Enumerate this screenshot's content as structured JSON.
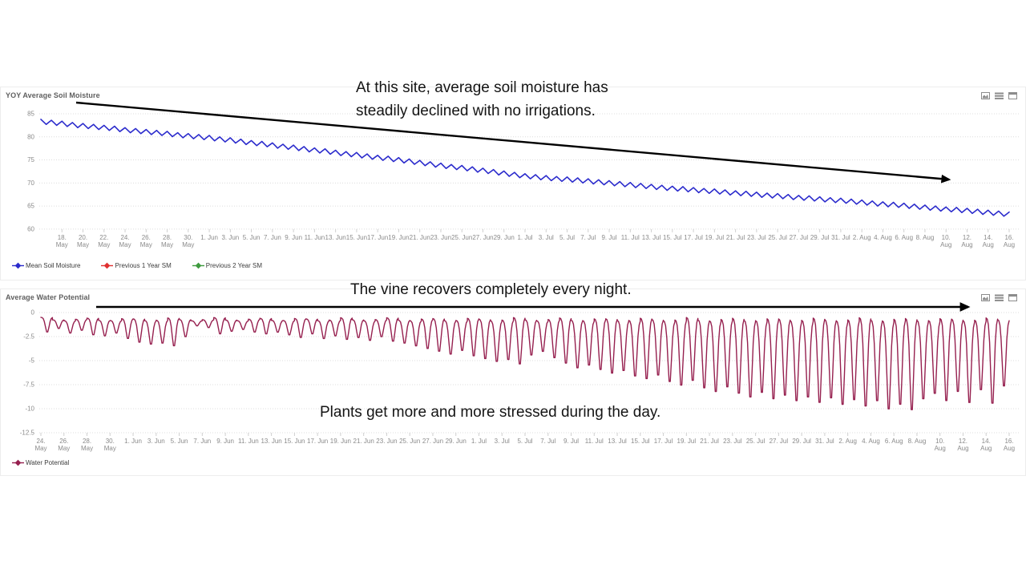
{
  "annotations": {
    "soil": {
      "line1": "At this site, average soil moisture has",
      "line2": "steadily declined with no irrigations."
    },
    "recovery": "The vine recovers completely every night.",
    "stress": "Plants get more and more stressed during the day."
  },
  "panel_icons": [
    "bar-chart",
    "table-view",
    "window"
  ],
  "ui_colors": {
    "grid": "#dcdcdc",
    "axis_text": "#8a8a8a",
    "icon_gray": "#8c8c8c",
    "arrow": "#000000"
  },
  "chart_data": [
    {
      "type": "line",
      "title": "YOY Average Soil Moisture",
      "xlabel": "",
      "ylabel": "",
      "yticks": [
        85,
        80,
        75,
        70,
        65,
        60
      ],
      "ylim": [
        59,
        86.5
      ],
      "grid": true,
      "legend_position": "bottom",
      "x_start_date": "16. May",
      "x_end_date": "16. Aug",
      "x_days": 92,
      "x_tick_start_day": 2,
      "x_tick_step_days": 2,
      "x_tick_labels": [
        "18.\nMay",
        "20.\nMay",
        "22.\nMay",
        "24.\nMay",
        "26.\nMay",
        "28.\nMay",
        "30.\nMay",
        "1. Jun",
        "3. Jun",
        "5. Jun",
        "7. Jun",
        "9. Jun",
        "11. Jun",
        "13. Jun",
        "15. Jun",
        "17. Jun",
        "19. Jun",
        "21. Jun",
        "23. Jun",
        "25. Jun",
        "27. Jun",
        "29. Jun",
        "1. Jul",
        "3. Jul",
        "5. Jul",
        "7. Jul",
        "9. Jul",
        "11. Jul",
        "13. Jul",
        "15. Jul",
        "17. Jul",
        "19. Jul",
        "21. Jul",
        "23. Jul",
        "25. Jul",
        "27. Jul",
        "29. Jul",
        "31. Jul",
        "2. Aug",
        "4. Aug",
        "6. Aug",
        "8. Aug",
        "10.\nAug",
        "12.\nAug",
        "14.\nAug",
        "16.\nAug"
      ],
      "series": [
        {
          "name": "Mean Soil Moisture",
          "color": "#2b2bcc",
          "daily_oscillation": 0.5,
          "daily_values": [
            83.3,
            83.1,
            82.9,
            82.6,
            82.4,
            82.2,
            82.0,
            81.8,
            81.5,
            81.3,
            81.1,
            80.9,
            80.7,
            80.4,
            80.2,
            80.0,
            79.8,
            79.5,
            79.3,
            79.0,
            78.7,
            78.5,
            78.2,
            77.9,
            77.7,
            77.4,
            77.1,
            76.9,
            76.6,
            76.3,
            76.1,
            75.8,
            75.5,
            75.3,
            75.0,
            74.7,
            74.4,
            74.1,
            73.8,
            73.5,
            73.3,
            73.0,
            72.7,
            72.4,
            72.1,
            71.8,
            71.5,
            71.3,
            71.1,
            70.9,
            70.8,
            70.6,
            70.4,
            70.2,
            70.0,
            69.8,
            69.6,
            69.4,
            69.2,
            69.0,
            68.8,
            68.7,
            68.5,
            68.3,
            68.2,
            68.0,
            67.8,
            67.7,
            67.5,
            67.3,
            67.2,
            67.0,
            66.8,
            66.7,
            66.5,
            66.3,
            66.2,
            66.0,
            65.8,
            65.6,
            65.4,
            65.3,
            65.1,
            64.9,
            64.7,
            64.5,
            64.3,
            64.2,
            64.0,
            63.8,
            63.6,
            63.4,
            63.2
          ]
        },
        {
          "name": "Previous 1 Year SM",
          "color": "#e03131",
          "daily_values": []
        },
        {
          "name": "Previous 2 Year SM",
          "color": "#3f9b3f",
          "daily_values": []
        }
      ]
    },
    {
      "type": "line",
      "title": "Average Water Potential",
      "xlabel": "",
      "ylabel": "",
      "yticks": [
        0,
        -2.5,
        -5,
        -7.5,
        -10,
        -12.5
      ],
      "ylim": [
        -13.5,
        0.8
      ],
      "grid": true,
      "legend_position": "bottom",
      "x_start_date": "24. May",
      "x_end_date": "16. Aug",
      "x_days": 84,
      "x_tick_start_day": 0,
      "x_tick_step_days": 2,
      "x_tick_labels": [
        "24.\nMay",
        "26.\nMay",
        "28.\nMay",
        "30.\nMay",
        "1. Jun",
        "3. Jun",
        "5. Jun",
        "7. Jun",
        "9. Jun",
        "11. Jun",
        "13. Jun",
        "15. Jun",
        "17. Jun",
        "19. Jun",
        "21. Jun",
        "23. Jun",
        "25. Jun",
        "27. Jun",
        "29. Jun",
        "1. Jul",
        "3. Jul",
        "5. Jul",
        "7. Jul",
        "9. Jul",
        "11. Jul",
        "13. Jul",
        "15. Jul",
        "17. Jul",
        "19. Jul",
        "21. Jul",
        "23. Jul",
        "25. Jul",
        "27. Jul",
        "29. Jul",
        "31. Jul",
        "2. Aug",
        "4. Aug",
        "6. Aug",
        "8. Aug",
        "10.\nAug",
        "12.\nAug",
        "14.\nAug",
        "16.\nAug"
      ],
      "series": [
        {
          "name": "Water Potential",
          "color": "#96204f",
          "daily_max_typical": -0.6,
          "daily_min": [
            -2.1,
            -1.7,
            -2.2,
            -1.9,
            -2.4,
            -2.5,
            -2.2,
            -2.8,
            -3.2,
            -3.4,
            -3.3,
            -3.6,
            -2.6,
            -1.4,
            -1.6,
            -2.3,
            -2.0,
            -1.8,
            -2.1,
            -2.3,
            -2.1,
            -2.4,
            -2.7,
            -2.3,
            -2.8,
            -2.5,
            -2.9,
            -2.7,
            -3.0,
            -2.6,
            -3.1,
            -3.3,
            -3.6,
            -3.9,
            -4.2,
            -4.5,
            -4.1,
            -4.7,
            -5.0,
            -5.3,
            -5.1,
            -5.6,
            -4.6,
            -4.2,
            -4.9,
            -5.5,
            -6.0,
            -5.7,
            -6.2,
            -6.6,
            -6.3,
            -6.9,
            -7.2,
            -6.8,
            -7.5,
            -7.9,
            -7.4,
            -8.2,
            -8.6,
            -8.1,
            -8.8,
            -9.2,
            -8.7,
            -9.4,
            -9.0,
            -9.6,
            -9.2,
            -9.8,
            -9.3,
            -10.0,
            -9.5,
            -10.2,
            -9.6,
            -10.5,
            -10.0,
            -10.6,
            -9.4,
            -8.8,
            -9.6,
            -8.6,
            -9.8,
            -8.4,
            -9.9,
            -8.0
          ]
        }
      ]
    }
  ]
}
